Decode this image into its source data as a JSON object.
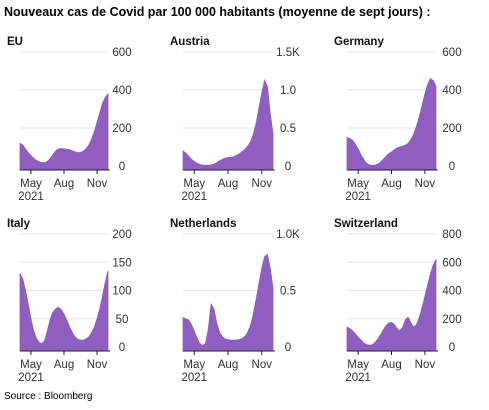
{
  "title": "Nouveaux cas de Covid par 100 000 habitants (moyenne de sept jours) :",
  "source": "Source : Bloomberg",
  "colors": {
    "area": "#8e5fbf",
    "axis": "#222222",
    "grid": "#e6e6e6"
  },
  "chart_data": [
    {
      "type": "area",
      "title": "EU",
      "x_ticks": [
        "May\n2021",
        "Aug",
        "Nov"
      ],
      "y_ticks": [
        "0",
        "200",
        "400",
        "600"
      ],
      "ylim": [
        0,
        600
      ],
      "x_range_months": [
        "Apr 2021",
        "Dec 2021"
      ],
      "values": [
        120,
        110,
        90,
        70,
        55,
        40,
        30,
        22,
        18,
        18,
        25,
        40,
        60,
        80,
        90,
        92,
        90,
        88,
        85,
        80,
        75,
        70,
        72,
        78,
        90,
        110,
        140,
        180,
        230,
        280,
        330,
        360,
        380
      ]
    },
    {
      "type": "area",
      "title": "Austria",
      "x_ticks": [
        "May\n2021",
        "Aug",
        "Nov"
      ],
      "y_ticks": [
        "0",
        "0.5",
        "1.0",
        "1.5K"
      ],
      "ylim": [
        0,
        1500
      ],
      "x_range_months": [
        "Apr 2021",
        "Dec 2021"
      ],
      "values": [
        200,
        170,
        130,
        90,
        60,
        35,
        20,
        12,
        10,
        10,
        14,
        25,
        45,
        70,
        90,
        105,
        110,
        115,
        120,
        140,
        160,
        190,
        220,
        260,
        320,
        420,
        560,
        760,
        960,
        1130,
        1050,
        700,
        420
      ]
    },
    {
      "type": "area",
      "title": "Germany",
      "x_ticks": [
        "May\n2021",
        "Aug",
        "Nov"
      ],
      "y_ticks": [
        "0",
        "200",
        "400",
        "600"
      ],
      "ylim": [
        0,
        600
      ],
      "x_range_months": [
        "Apr 2021",
        "Dec 2021"
      ],
      "values": [
        150,
        145,
        135,
        115,
        90,
        60,
        35,
        15,
        6,
        4,
        5,
        10,
        20,
        35,
        50,
        65,
        75,
        85,
        95,
        100,
        105,
        110,
        120,
        140,
        170,
        210,
        260,
        320,
        380,
        430,
        460,
        450,
        420
      ]
    },
    {
      "type": "area",
      "title": "Italy",
      "x_ticks": [
        "May\n2021",
        "Aug",
        "Nov"
      ],
      "y_ticks": [
        "0",
        "50",
        "100",
        "150",
        "200"
      ],
      "ylim": [
        0,
        200
      ],
      "x_range_months": [
        "Apr 2021",
        "Dec 2021"
      ],
      "values": [
        130,
        120,
        100,
        75,
        50,
        28,
        15,
        8,
        6,
        12,
        30,
        50,
        62,
        68,
        70,
        66,
        58,
        48,
        36,
        26,
        18,
        14,
        12,
        12,
        14,
        18,
        25,
        35,
        50,
        68,
        90,
        115,
        135
      ]
    },
    {
      "type": "area",
      "title": "Netherlands",
      "x_ticks": [
        "May\n2021",
        "Aug",
        "Nov"
      ],
      "y_ticks": [
        "0",
        "0.5",
        "1.0K"
      ],
      "ylim": [
        0,
        1000
      ],
      "x_range_months": [
        "Apr 2021",
        "Dec 2021"
      ],
      "values": [
        260,
        250,
        240,
        200,
        140,
        80,
        30,
        12,
        30,
        160,
        380,
        340,
        210,
        130,
        90,
        70,
        65,
        60,
        60,
        62,
        66,
        75,
        95,
        130,
        190,
        290,
        420,
        560,
        700,
        800,
        820,
        700,
        520
      ]
    },
    {
      "type": "area",
      "title": "Switzerland",
      "x_ticks": [
        "May\n2021",
        "Aug",
        "Nov"
      ],
      "y_ticks": [
        "0",
        "200",
        "400",
        "600",
        "800"
      ],
      "ylim": [
        0,
        800
      ],
      "x_range_months": [
        "Apr 2021",
        "Dec 2021"
      ],
      "values": [
        140,
        130,
        115,
        95,
        70,
        50,
        30,
        18,
        12,
        15,
        30,
        55,
        85,
        120,
        150,
        170,
        175,
        160,
        130,
        115,
        140,
        195,
        210,
        170,
        140,
        160,
        210,
        280,
        360,
        440,
        520,
        580,
        620
      ]
    }
  ]
}
